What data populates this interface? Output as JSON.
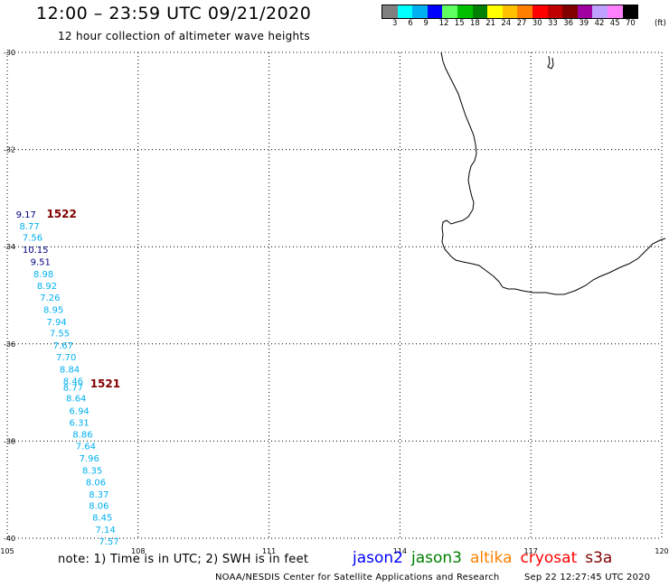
{
  "header": {
    "title": "12:00 – 23:59 UTC 09/21/2020",
    "subtitle": "12 hour collection of altimeter wave heights"
  },
  "colorbar": {
    "colors": [
      "#808080",
      "#00ffff",
      "#00b0f0",
      "#0000ff",
      "#60ff60",
      "#00c000",
      "#008000",
      "#ffff00",
      "#ffc000",
      "#ff8000",
      "#ff0000",
      "#c00000",
      "#800000",
      "#a000a0",
      "#c0a0ff",
      "#ff80ff",
      "#000000"
    ],
    "labels": [
      "3",
      "6",
      "9",
      "12",
      "15",
      "18",
      "21",
      "24",
      "27",
      "30",
      "33",
      "36",
      "39",
      "42",
      "45",
      "70"
    ],
    "unit": "(ft)"
  },
  "map": {
    "lat_labels": [
      "-30",
      "-32",
      "-34",
      "-36",
      "-38",
      "-40"
    ],
    "lon_labels": [
      "105",
      "108",
      "111",
      "114",
      "117",
      "120"
    ],
    "lat_range": [
      -40,
      -30
    ],
    "lon_range": [
      105,
      120
    ],
    "grid": "dotted"
  },
  "orbits": [
    {
      "label": "1522",
      "lat": -33.4,
      "lon": 105.9
    },
    {
      "label": "1521",
      "lat": -36.9,
      "lon": 106.9
    }
  ],
  "observations": [
    {
      "text": "9.17",
      "lat": -33.4,
      "lon": 105.2,
      "color": "#000080"
    },
    {
      "text": "8.77",
      "lat": -33.64,
      "lon": 105.28,
      "color": "#00b0f0"
    },
    {
      "text": "7.56",
      "lat": -33.88,
      "lon": 105.35,
      "color": "#00b0f0"
    },
    {
      "text": "10.15",
      "lat": -34.13,
      "lon": 105.35,
      "color": "#000080"
    },
    {
      "text": "9.51",
      "lat": -34.38,
      "lon": 105.53,
      "color": "#000080"
    },
    {
      "text": "8.98",
      "lat": -34.63,
      "lon": 105.6,
      "color": "#00b0f0"
    },
    {
      "text": "8.92",
      "lat": -34.87,
      "lon": 105.68,
      "color": "#00b0f0"
    },
    {
      "text": "7.26",
      "lat": -35.11,
      "lon": 105.75,
      "color": "#00b0f0"
    },
    {
      "text": "8.95",
      "lat": -35.36,
      "lon": 105.83,
      "color": "#00b0f0"
    },
    {
      "text": "7.94",
      "lat": -35.61,
      "lon": 105.9,
      "color": "#00b0f0"
    },
    {
      "text": "7.55",
      "lat": -35.85,
      "lon": 105.97,
      "color": "#00b0f0"
    },
    {
      "text": "7.67",
      "lat": -36.1,
      "lon": 106.05,
      "color": "#00b0f0"
    },
    {
      "text": "7.70",
      "lat": -36.34,
      "lon": 106.12,
      "color": "#00b0f0"
    },
    {
      "text": "8.84",
      "lat": -36.59,
      "lon": 106.2,
      "color": "#00b0f0"
    },
    {
      "text": "8.46",
      "lat": -36.83,
      "lon": 106.28,
      "color": "#00b0f0"
    },
    {
      "text": "8.77",
      "lat": -36.96,
      "lon": 106.28,
      "color": "#00b0f0"
    },
    {
      "text": "8.64",
      "lat": -37.18,
      "lon": 106.35,
      "color": "#00b0f0"
    },
    {
      "text": "6.94",
      "lat": -37.44,
      "lon": 106.42,
      "color": "#00b0f0"
    },
    {
      "text": "6.31",
      "lat": -37.69,
      "lon": 106.42,
      "color": "#00b0f0"
    },
    {
      "text": "8.86",
      "lat": -37.93,
      "lon": 106.5,
      "color": "#00b0f0"
    },
    {
      "text": "7.64",
      "lat": -38.17,
      "lon": 106.57,
      "color": "#00b0f0"
    },
    {
      "text": "7.96",
      "lat": -38.42,
      "lon": 106.65,
      "color": "#00b0f0"
    },
    {
      "text": "8.35",
      "lat": -38.67,
      "lon": 106.72,
      "color": "#00b0f0"
    },
    {
      "text": "8.06",
      "lat": -38.91,
      "lon": 106.8,
      "color": "#00b0f0"
    },
    {
      "text": "8.37",
      "lat": -39.16,
      "lon": 106.87,
      "color": "#00b0f0"
    },
    {
      "text": "8.06",
      "lat": -39.4,
      "lon": 106.87,
      "color": "#00b0f0"
    },
    {
      "text": "8.45",
      "lat": -39.64,
      "lon": 106.95,
      "color": "#00b0f0"
    },
    {
      "text": "7.14",
      "lat": -39.89,
      "lon": 107.02,
      "color": "#00b0f0"
    },
    {
      "text": "7.57",
      "lat": -40.13,
      "lon": 107.1,
      "color": "#00b0f0"
    }
  ],
  "footer": {
    "note": "note: 1) Time is in UTC; 2) SWH is in feet",
    "credit": "NOAA/NESDIS Center for Satellite Applications and Research",
    "timestamp": "Sep 22 12:27:45 UTC 2020"
  },
  "legend": [
    {
      "name": "jason2",
      "color": "#0000ff"
    },
    {
      "name": "jason3",
      "color": "#008000"
    },
    {
      "name": "altika",
      "color": "#ff8000"
    },
    {
      "name": "cryosat",
      "color": "#ff0000"
    },
    {
      "name": "s3a",
      "color": "#800000"
    }
  ]
}
